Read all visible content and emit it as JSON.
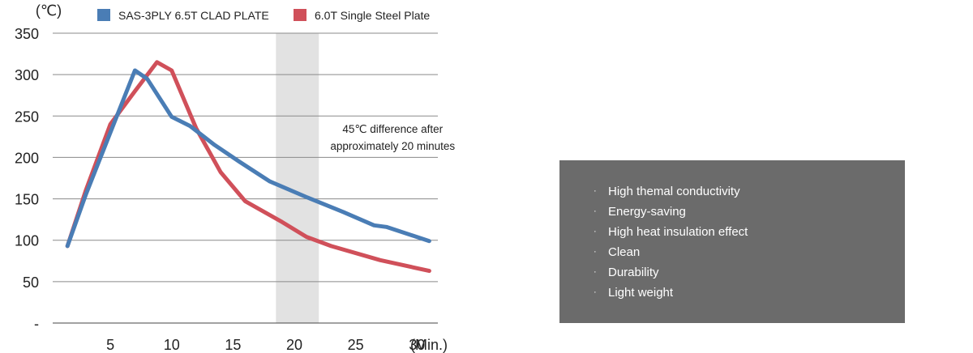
{
  "chart_data": {
    "type": "line",
    "y_unit": "(℃)",
    "x_unit": "(Min.)",
    "yticks": [
      "-",
      "50",
      "100",
      "150",
      "200",
      "250",
      "300",
      "350"
    ],
    "ylim": [
      0,
      350
    ],
    "xticks": [
      5,
      10,
      15,
      20,
      25,
      30
    ],
    "xlim": [
      0.3,
      31.7
    ],
    "grid": "horizontal",
    "legend_position": "top",
    "highlight_band": {
      "x": [
        18.5,
        22
      ]
    },
    "annotation": [
      "45℃ difference after",
      "approximately 20 minutes"
    ],
    "series": [
      {
        "name": "SAS-3PLY 6.5T CLAD PLATE",
        "color": "#4a7db5",
        "points": [
          [
            1.5,
            93
          ],
          [
            3,
            155
          ],
          [
            5,
            230
          ],
          [
            7,
            305
          ],
          [
            8,
            295
          ],
          [
            10,
            249
          ],
          [
            11.5,
            238
          ],
          [
            13.5,
            215
          ],
          [
            15.5,
            195
          ],
          [
            18,
            171
          ],
          [
            21,
            152
          ],
          [
            24,
            134
          ],
          [
            26.5,
            118
          ],
          [
            27.5,
            116
          ],
          [
            31,
            99
          ]
        ]
      },
      {
        "name": "6.0T Single Steel Plate",
        "color": "#d0505a",
        "points": [
          [
            1.5,
            93
          ],
          [
            3,
            160
          ],
          [
            5,
            240
          ],
          [
            7,
            280
          ],
          [
            8.8,
            315
          ],
          [
            10,
            305
          ],
          [
            12,
            235
          ],
          [
            14,
            182
          ],
          [
            16,
            147
          ],
          [
            19,
            122
          ],
          [
            21,
            104
          ],
          [
            23,
            93
          ],
          [
            27,
            76
          ],
          [
            31,
            63
          ]
        ]
      }
    ]
  },
  "features": [
    "High themal conductivity",
    "Energy-saving",
    "High heat insulation effect",
    "Clean",
    "Durability",
    "Light weight"
  ],
  "bullet": "·"
}
